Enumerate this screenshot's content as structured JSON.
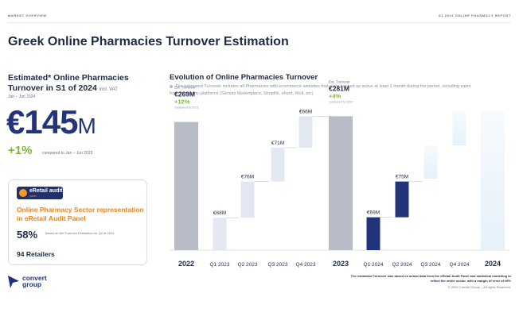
{
  "header": {
    "left": "MARKET OVERVIEW",
    "right": "S1 2024 ONLINE PHARMACY REPORT"
  },
  "title": "Greek Online Pharmacies Turnover Estimation",
  "summary": {
    "title": "Estimated* Online Pharmacies Turnover in S1 of 2024",
    "vat": "incl. VAT",
    "period": "Jan – Jun 2024",
    "value": "€145",
    "unit": "M",
    "growth": "+1%",
    "growth_note": "compared to Jan – Jun 2023"
  },
  "panel_card": {
    "badge": "eRetail audit",
    "badge_sub": "panel",
    "heading": "Online Pharmacy Sector representation in eRetail Audit Panel",
    "percent": "58%",
    "percent_note": "based on the Turnover Estimation for Q2 of 2024",
    "retailers": "94 Retailers"
  },
  "chart_heading": {
    "title": "Evolution of Online Pharmacies Turnover",
    "subtitle": "The estimated Turnover includes all Pharmacies with ecommerce websites that were tracked as active at least 1 month during the period, including sales from third-party platforms (Skroutz Marketplace, Shopflix, efood, Wolt, etc)."
  },
  "chart_data": {
    "type": "bar",
    "subtype": "waterfall",
    "categories": [
      "2022",
      "Q1 2023",
      "Q2 2023",
      "Q3 2023",
      "Q4 2023",
      "2023",
      "Q1 2024",
      "Q2 2024",
      "Q3 2024",
      "Q4 2024",
      "2024"
    ],
    "values": [
      269,
      68,
      76,
      71,
      66,
      281,
      69,
      75,
      null,
      null,
      null
    ],
    "value_labels": [
      "",
      "€68M",
      "€76M",
      "€71M",
      "€66M",
      "",
      "€69M",
      "€75M",
      "",
      "",
      ""
    ],
    "kind": [
      "total",
      "quarter",
      "quarter",
      "quarter",
      "quarter",
      "total",
      "quarter",
      "quarter",
      "future",
      "future",
      "future"
    ],
    "totals": [
      {
        "category": "2022",
        "label": "Est. Turnover",
        "value": "€269M",
        "change": "+12%",
        "note": "compared to 2021"
      },
      {
        "category": "2023",
        "label": "Est. Turnover",
        "value": "€281M",
        "change": "+4%",
        "note": "compared to 2022"
      }
    ],
    "ylim": [
      0,
      300
    ],
    "colors": {
      "total": "#b8bcc6",
      "quarter_2023": "#e3e7f1",
      "quarter_2024": "#22357a",
      "future": "#e6f1fa",
      "text": "#1f2a44",
      "growth": "#7cb82f"
    }
  },
  "footer": {
    "note": "The estimated Turnover was based on actual data from the eRetail Audit Panel and statistical modelling to reflect the entire sector, with a margin of error of ±5%",
    "copyright": "© 2024 Convert Group – All rights Reserved."
  },
  "logo": {
    "line1": "convert",
    "line2": "group"
  }
}
